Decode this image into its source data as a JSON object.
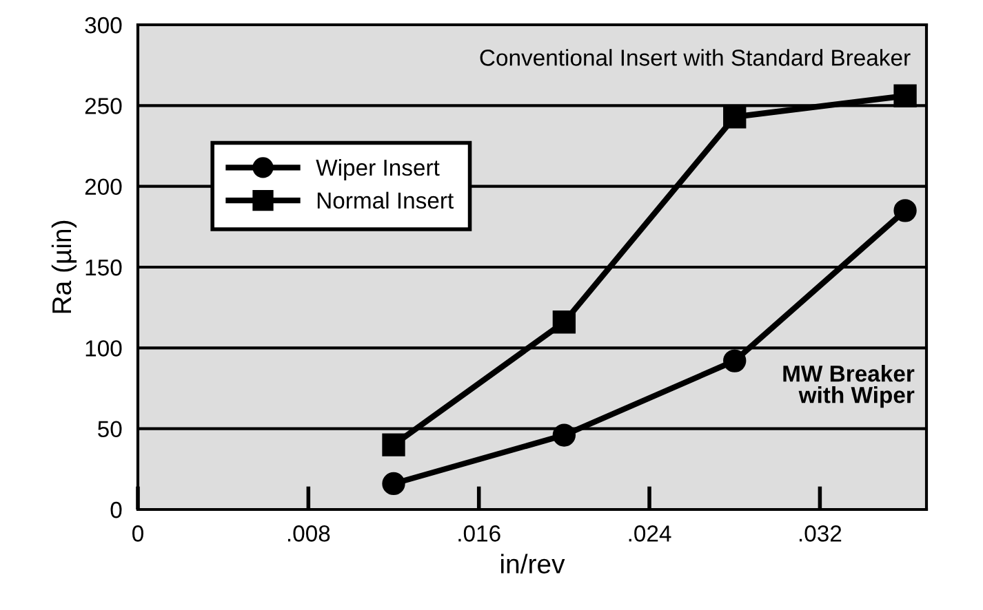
{
  "chart_data": {
    "type": "line",
    "xlabel": "in/rev",
    "ylabel": "Ra (µin)",
    "series": [
      {
        "name": "Wiper Insert",
        "color": "#000000",
        "marker": "circle",
        "x": [
          0.012,
          0.02,
          0.028,
          0.036
        ],
        "values": [
          16,
          46,
          92,
          185
        ]
      },
      {
        "name": "Normal Insert",
        "color": "#000000",
        "marker": "square",
        "x": [
          0.012,
          0.02,
          0.028,
          0.036
        ],
        "values": [
          40,
          116,
          243,
          256
        ]
      }
    ],
    "xlim": [
      0,
      0.037
    ],
    "xticks": [
      0,
      {
        "value": 0.008,
        "label": ".008"
      },
      {
        "value": 0.016,
        "label": ".016"
      },
      {
        "value": 0.024,
        "label": ".024"
      },
      {
        "value": 0.032,
        "label": ".032"
      }
    ],
    "ylim": [
      0,
      300
    ],
    "yticks": [
      0,
      50,
      100,
      150,
      200,
      250,
      300
    ],
    "grid": "y",
    "legend": "top left",
    "line_style": "solid",
    "annotations": [
      "Conventional Insert with Standard Breaker",
      "MW Breaker\nwith Wiper"
    ]
  }
}
